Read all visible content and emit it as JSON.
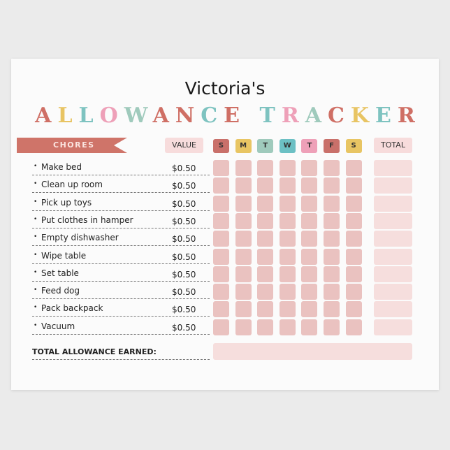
{
  "header": {
    "name": "Victoria's",
    "title": "ALLOWANCE TRACKER",
    "title_colors": [
      "#cf6f65",
      "#e8c463",
      "#7ec3c0",
      "#eea0b8",
      "#9fcabc",
      "#cf6f65",
      "#cf6f65",
      "#7ec3c0",
      "#cf6f65",
      " ",
      "#7ec3c0",
      "#eea0b8",
      "#9fcabc",
      "#cf6f65",
      "#e8c463",
      "#7ec3c0",
      "#cf6f65"
    ]
  },
  "table": {
    "chores_label": "CHORES",
    "value_label": "VALUE",
    "total_label": "TOTAL",
    "days": [
      {
        "label": "S",
        "color": "#c9706a"
      },
      {
        "label": "M",
        "color": "#e8c563"
      },
      {
        "label": "T",
        "color": "#9fcabc"
      },
      {
        "label": "W",
        "color": "#6cc0c4"
      },
      {
        "label": "T",
        "color": "#eea0b8"
      },
      {
        "label": "F",
        "color": "#c9706a"
      },
      {
        "label": "S",
        "color": "#e8c563"
      }
    ],
    "rows": [
      {
        "chore": "Make bed",
        "value": "$0.50"
      },
      {
        "chore": "Clean up room",
        "value": "$0.50"
      },
      {
        "chore": "Pick up toys",
        "value": "$0.50"
      },
      {
        "chore": "Put clothes in hamper",
        "value": "$0.50"
      },
      {
        "chore": "Empty dishwasher",
        "value": "$0.50"
      },
      {
        "chore": "Wipe table",
        "value": "$0.50"
      },
      {
        "chore": "Set table",
        "value": "$0.50"
      },
      {
        "chore": "Feed dog",
        "value": "$0.50"
      },
      {
        "chore": "Pack backpack",
        "value": "$0.50"
      },
      {
        "chore": "Vacuum",
        "value": "$0.50"
      }
    ],
    "bullet": "•",
    "total_allowance_label": "TOTAL ALLOWANCE EARNED:"
  }
}
